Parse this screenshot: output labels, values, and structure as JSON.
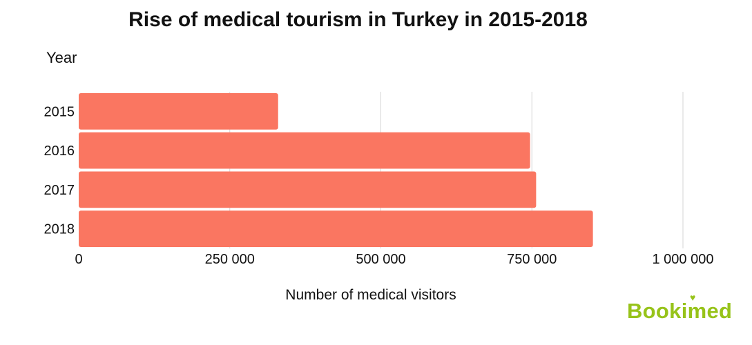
{
  "chart_data": {
    "type": "bar",
    "orientation": "horizontal",
    "title": "Rise of medical tourism in Turkey in 2015-2018",
    "ylabel": "Year",
    "xlabel": "Number of medical visitors",
    "categories": [
      "2015",
      "2016",
      "2017",
      "2018"
    ],
    "values": [
      330000,
      747000,
      757000,
      851000
    ],
    "xlim": [
      0,
      1000000
    ],
    "xticks": [
      0,
      250000,
      500000,
      750000,
      1000000
    ],
    "xtick_labels": [
      "0",
      "250 000",
      "500 000",
      "750 000",
      "1 000 000"
    ],
    "grid": "vertical",
    "legend": "none",
    "bar_color": "#fa7661",
    "grid_color": "#d6d6d6"
  },
  "branding": {
    "logo_text": "Bookimed",
    "logo_color": "#97c31a"
  }
}
